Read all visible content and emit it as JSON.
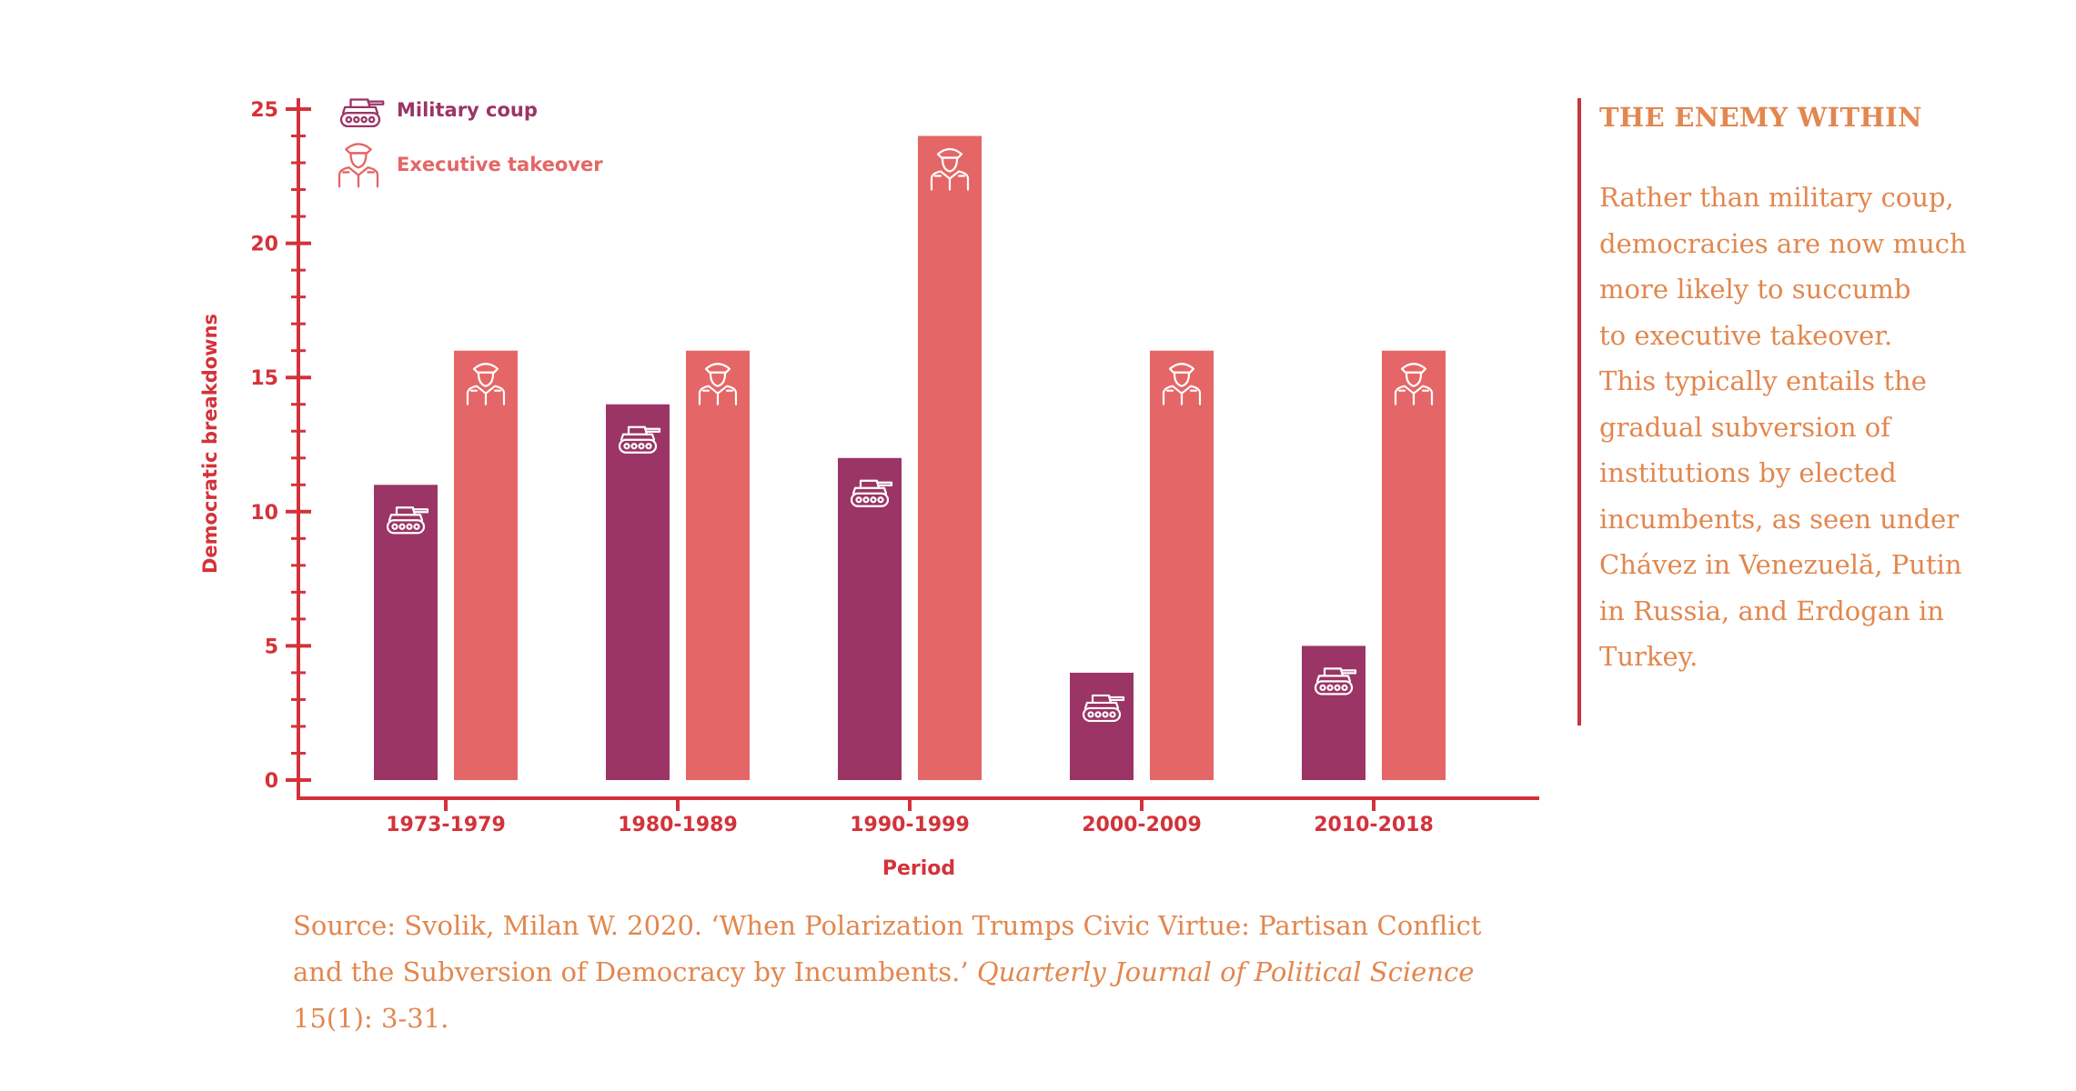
{
  "chart_data": {
    "type": "bar",
    "xlabel": "Period",
    "ylabel": "Democratic breakdowns",
    "categories": [
      "1973-1979",
      "1980-1989",
      "1990-1999",
      "2000-2009",
      "2010-2018"
    ],
    "series": [
      {
        "name": "Military coup",
        "values": [
          11,
          14,
          12,
          4,
          5
        ],
        "color": "#9b3565",
        "icon": "tank-icon"
      },
      {
        "name": "Executive takeover",
        "values": [
          16,
          16,
          24,
          16,
          16
        ],
        "color": "#e56666",
        "icon": "officer-icon"
      }
    ],
    "ylim": [
      0,
      25
    ],
    "yticks": [
      "0",
      "5",
      "10",
      "15",
      "20",
      "25"
    ],
    "grid": false,
    "legend": "top-left"
  },
  "colors": {
    "axis": "#d4323a",
    "text_accent": "#e2874f",
    "military": "#9b3565",
    "executive": "#e56666"
  },
  "sidebar": {
    "title": "THE ENEMY WITHIN",
    "body_lines": [
      "Rather than military coup,",
      "democracies are now much",
      "more likely to succumb",
      "to executive takeover.",
      "This typically entails the",
      "gradual subversion of",
      "institutions by elected",
      "incumbents, as seen under",
      "Chávez in Venezuelă, Putin",
      "in Russia, and Erdogan in",
      "Turkey."
    ]
  },
  "source": {
    "line1": "Source: Svolik, Milan W. 2020. ‘When Polarization Trumps Civic Virtue: Partisan Conflict",
    "line2_plain": "and the Subversion of Democracy by Incumbents.’ ",
    "line2_italic": "Quarterly Journal of Political Science",
    "line3": "15(1): 3-31."
  }
}
